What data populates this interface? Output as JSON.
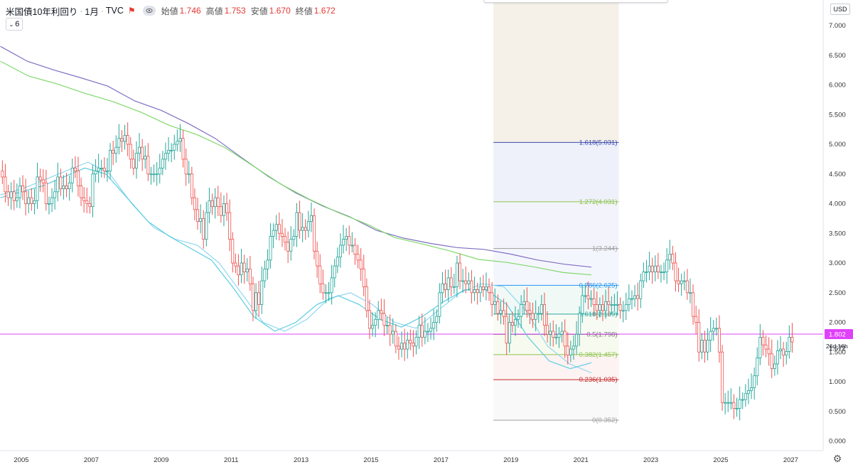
{
  "legend": {
    "symbol": "米国債10年利回り",
    "interval": "1月",
    "exchange": "TVC",
    "open_label": "始値",
    "open": "1.746",
    "high_label": "高値",
    "high": "1.753",
    "low_label": "安値",
    "low": "1.670",
    "close_label": "終値",
    "close": "1.672",
    "indicator_count": "6"
  },
  "price_scale": {
    "currency": "USD",
    "ticks": [
      "7.000",
      "6.500",
      "6.000",
      "5.500",
      "5.000",
      "4.500",
      "4.000",
      "3.500",
      "3.000",
      "2.500",
      "2.000",
      "1.500",
      "1.000",
      "0.500",
      "0.000"
    ],
    "last_price_label": "1.672",
    "countdown": "26d 16h",
    "horizontal_line_value": 1.802,
    "horizontal_line_label": "1.802"
  },
  "time_scale": {
    "ticks": [
      "2005",
      "2007",
      "2009",
      "2011",
      "2013",
      "2015",
      "2017",
      "2019",
      "2021",
      "2023",
      "2025",
      "2027"
    ]
  },
  "fibonacci": {
    "levels": [
      {
        "ratio": 1.618,
        "value": 5.031,
        "label": "1.618(5.031)",
        "color": "#3949ab",
        "fill": "#eef0fa"
      },
      {
        "ratio": 1.272,
        "value": 4.031,
        "label": "1.272(4.031)",
        "color": "#8bc34a",
        "fill": "#f3f4fb"
      },
      {
        "ratio": 1,
        "value": 3.244,
        "label": "1(3.244)",
        "color": "#9e9e9e",
        "fill": "#f4f6fd"
      },
      {
        "ratio": 0.786,
        "value": 2.625,
        "label": "0.786(2.625)",
        "color": "#2196f3",
        "fill": "#f0f9f6"
      },
      {
        "ratio": 0.618,
        "value": 2.139,
        "label": "0.618(2.139)",
        "color": "#26a69a",
        "fill": "#f8fbf4"
      },
      {
        "ratio": 0.5,
        "value": 1.798,
        "label": "0.5(1.798)",
        "color": "#777777",
        "fill": "#f7faee"
      },
      {
        "ratio": 0.382,
        "value": 1.457,
        "label": "0.382(1.457)",
        "color": "#8bc34a",
        "fill": "#fdf3f3"
      },
      {
        "ratio": 0.236,
        "value": 1.035,
        "label": "0.236(1.035)",
        "color": "#c62828",
        "fill": "#f9f9f9"
      },
      {
        "ratio": 0,
        "value": 0.352,
        "label": "0(0.352)",
        "color": "#9e9e9e",
        "fill": ""
      }
    ],
    "top_fill": "#f5f0e8",
    "start_date": "2018-07",
    "end_date": "2022-02"
  },
  "colors": {
    "up": "#26a69a",
    "down": "#ef5350",
    "ma_long": "#7e6fc2",
    "ma_mid": "#7fd86a",
    "ma_short1": "#8fd7f0",
    "ma_short2": "#5ccde0",
    "hline": "#e040fb",
    "accent": "#e53935"
  },
  "chart_data": {
    "type": "candlestick",
    "x_start": "2004-01",
    "x_end": "2028-02",
    "y_range": [
      -0.4,
      7.3
    ],
    "closes": [
      4.15,
      4.35,
      4.45,
      4.3,
      4.55,
      4.45,
      4.2,
      4.1,
      4.2,
      4.05,
      4.1,
      4.3,
      4.2,
      4.0,
      4.1,
      4.0,
      4.05,
      4.45,
      4.4,
      4.35,
      4.0,
      4.0,
      4.1,
      4.2,
      4.45,
      4.25,
      4.3,
      4.25,
      4.35,
      4.6,
      4.55,
      4.3,
      4.1,
      4.05,
      4.0,
      3.95,
      4.5,
      4.55,
      4.6,
      4.6,
      4.55,
      4.55,
      4.9,
      4.85,
      4.95,
      5.1,
      5.05,
      5.15,
      5.0,
      4.75,
      4.6,
      4.85,
      4.95,
      4.75,
      4.8,
      4.5,
      4.5,
      4.5,
      4.5,
      4.6,
      4.75,
      4.85,
      4.9,
      4.9,
      5.0,
      5.05,
      5.1,
      4.75,
      4.5,
      4.5,
      4.1,
      3.9,
      3.7,
      3.75,
      3.4,
      3.85,
      4.05,
      3.95,
      4.1,
      3.95,
      3.8,
      4.0,
      3.85,
      3.4,
      3.0,
      2.95,
      2.8,
      3.0,
      2.85,
      2.9,
      2.65,
      2.2,
      2.5,
      2.3,
      2.7,
      2.9,
      3.05,
      3.45,
      3.55,
      3.65,
      3.5,
      3.45,
      3.35,
      3.2,
      3.4,
      3.45,
      3.85,
      3.55,
      3.6,
      3.55,
      3.7,
      3.8,
      3.2,
      2.95,
      2.65,
      2.5,
      2.5,
      2.5,
      2.75,
      2.95,
      3.1,
      3.3,
      3.4,
      3.45,
      3.3,
      3.3,
      3.15,
      3.05,
      2.9,
      2.6,
      2.2,
      1.9,
      1.95,
      2.05,
      2.2,
      2.15,
      1.95,
      1.95,
      1.8,
      1.85,
      1.6,
      1.55,
      1.65,
      1.55,
      1.7,
      1.65,
      1.6,
      1.75,
      1.95,
      1.75,
      1.85,
      1.85,
      1.9,
      2.0,
      2.1,
      2.5,
      2.65,
      2.55,
      2.75,
      2.6,
      2.6,
      3.0,
      2.7,
      2.7,
      2.65,
      2.7,
      2.5,
      2.55,
      2.5,
      2.6,
      2.55,
      2.6,
      2.5,
      2.3,
      2.35,
      2.15,
      2.2,
      2.1,
      1.65,
      2.0,
      1.95,
      2.05,
      2.1,
      2.3,
      2.35,
      2.2,
      2.15,
      2.05,
      2.15,
      2.15,
      2.3,
      1.95,
      1.8,
      1.85,
      1.75,
      1.75,
      1.8,
      1.85,
      1.6,
      1.45,
      1.55,
      1.6,
      1.8,
      2.15,
      2.45,
      2.45,
      2.4,
      2.4,
      2.3,
      2.2,
      2.3,
      2.2,
      2.35,
      2.3,
      2.3,
      2.3,
      2.3,
      2.2,
      2.2,
      2.3,
      2.4,
      2.4,
      2.45,
      2.4,
      2.7,
      2.85,
      2.85,
      2.95,
      2.85,
      2.95,
      2.85,
      2.85,
      2.85,
      3.05,
      3.15,
      3.0,
      2.7,
      2.65,
      2.7,
      2.7,
      2.5,
      2.5,
      2.1,
      2.0,
      1.5,
      1.7,
      1.5,
      1.7,
      1.85,
      1.9,
      1.9,
      1.5,
      0.65,
      0.65,
      0.65,
      0.65,
      0.55,
      0.55,
      0.7,
      0.7,
      0.8,
      0.85,
      0.9,
      1.1,
      1.4,
      1.75,
      1.62,
      1.55,
      1.47,
      1.22,
      1.3,
      1.52,
      1.55,
      1.45,
      1.51,
      1.75,
      1.67
    ],
    "ma_long": [
      6.65,
      6.4,
      6.25,
      6.12,
      5.98,
      5.73,
      5.57,
      5.35,
      5.1,
      4.77,
      4.45,
      4.18,
      3.96,
      3.78,
      3.55,
      3.42,
      3.33,
      3.26,
      3.23,
      3.15,
      3.05,
      2.98,
      2.93
    ],
    "ma_mid": [
      6.4,
      6.15,
      6.02,
      5.86,
      5.72,
      5.54,
      5.32,
      5.16,
      4.94,
      4.63,
      4.32,
      4.07,
      3.85,
      3.66,
      3.43,
      3.32,
      3.2,
      3.06,
      3.01,
      2.93,
      2.84,
      2.8
    ],
    "ma_short1": [
      4.15,
      4.25,
      4.4,
      4.55,
      4.7,
      4.5,
      4.0,
      3.6,
      3.4,
      3.3,
      3.0,
      2.5,
      2.0,
      1.85,
      2.05,
      2.4,
      2.5,
      2.3,
      2.0,
      1.9,
      2.2,
      2.5,
      2.65,
      2.6,
      2.2,
      1.6,
      1.3,
      1.15
    ],
    "ma_short2": [
      4.1,
      4.2,
      4.3,
      4.45,
      4.6,
      4.5,
      4.1,
      3.7,
      3.45,
      3.25,
      3.05,
      2.6,
      2.1,
      1.85,
      2.0,
      2.3,
      2.45,
      2.3,
      2.05,
      1.92,
      2.1,
      2.35,
      2.55,
      2.55,
      2.3,
      1.75,
      1.35,
      1.22,
      1.32
    ]
  }
}
